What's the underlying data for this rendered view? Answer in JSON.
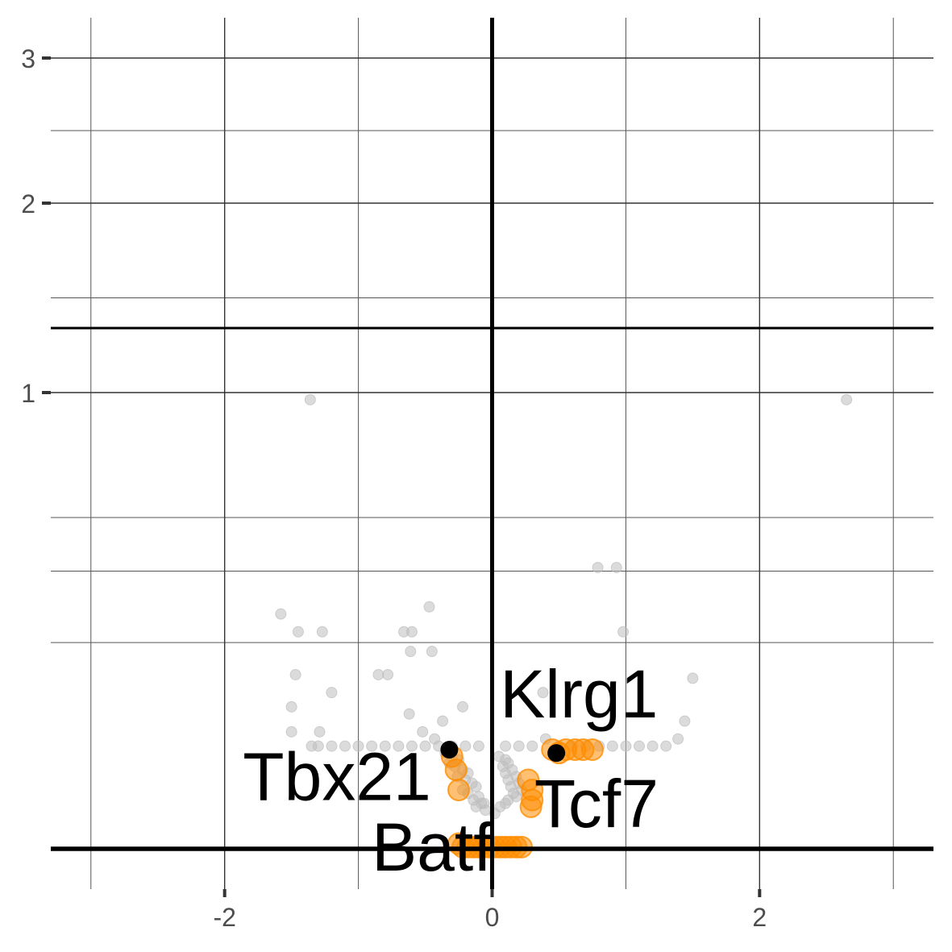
{
  "chart_data": {
    "type": "scatter",
    "title": "",
    "xlabel": "",
    "ylabel": "",
    "xlim": [
      -3.3,
      3.3
    ],
    "ylim": [
      -0.05,
      3.1
    ],
    "x_ticks": [
      {
        "value": -2,
        "label": "-2"
      },
      {
        "value": 0,
        "label": "0"
      },
      {
        "value": 2,
        "label": "2"
      }
    ],
    "y_ticks": [
      {
        "value": 1,
        "label": "1"
      },
      {
        "value": 2,
        "label": "2"
      },
      {
        "value": 3,
        "label": "3"
      }
    ],
    "grid": true,
    "reference_lines": {
      "x": 0,
      "y": [
        0,
        1.3
      ]
    },
    "colors": {
      "background_genes": "#bdbdbd",
      "highlight": "#ff8c00",
      "labelled_point": "#000000",
      "grid_major": "#333333",
      "grid_minor": "#555555"
    },
    "series": [
      {
        "role": "background",
        "points": [
          [
            -1.36,
            0.98
          ],
          [
            2.65,
            0.98
          ],
          [
            0.79,
            0.51
          ],
          [
            0.93,
            0.51
          ],
          [
            -1.58,
            0.38
          ],
          [
            -0.47,
            0.4
          ],
          [
            -1.45,
            0.33
          ],
          [
            -1.27,
            0.33
          ],
          [
            -0.66,
            0.33
          ],
          [
            -0.6,
            0.33
          ],
          [
            0.98,
            0.33
          ],
          [
            -0.61,
            0.275
          ],
          [
            -0.45,
            0.275
          ],
          [
            -1.47,
            0.21
          ],
          [
            -0.85,
            0.21
          ],
          [
            -0.78,
            0.21
          ],
          [
            1.5,
            0.2
          ],
          [
            -1.2,
            0.16
          ],
          [
            0.38,
            0.16
          ],
          [
            -1.5,
            0.12
          ],
          [
            -0.22,
            0.12
          ],
          [
            -0.62,
            0.1
          ],
          [
            -0.37,
            0.08
          ],
          [
            1.44,
            0.08
          ],
          [
            -1.5,
            0.05
          ],
          [
            -1.29,
            0.05
          ],
          [
            -0.52,
            0.05
          ],
          [
            1.39,
            0.03
          ],
          [
            -0.43,
            0.03
          ],
          [
            0.4,
            0.03
          ],
          [
            -1.35,
            0.01
          ],
          [
            -1.3,
            0.01
          ],
          [
            -1.2,
            0.01
          ],
          [
            -1.1,
            0.01
          ],
          [
            -1.0,
            0.01
          ],
          [
            -0.9,
            0.01
          ],
          [
            -0.8,
            0.01
          ],
          [
            -0.7,
            0.01
          ],
          [
            -0.6,
            0.01
          ],
          [
            -0.5,
            0.01
          ],
          [
            -0.4,
            0.01
          ],
          [
            -0.3,
            0.01
          ],
          [
            -0.2,
            0.01
          ],
          [
            -0.1,
            0.01
          ],
          [
            0.1,
            0.01
          ],
          [
            0.2,
            0.01
          ],
          [
            0.3,
            0.01
          ],
          [
            0.5,
            0.01
          ],
          [
            0.6,
            0.01
          ],
          [
            0.7,
            0.01
          ],
          [
            0.8,
            0.01
          ],
          [
            0.9,
            0.01
          ],
          [
            1.0,
            0.01
          ],
          [
            1.1,
            0.01
          ],
          [
            1.2,
            0.01
          ],
          [
            1.3,
            0.01
          ],
          [
            -0.35,
            -0.01
          ],
          [
            -0.3,
            -0.02
          ],
          [
            -0.25,
            -0.03
          ],
          [
            -0.32,
            -0.04
          ],
          [
            -0.28,
            -0.05
          ],
          [
            -0.22,
            -0.06
          ],
          [
            -0.18,
            -0.07
          ],
          [
            -0.26,
            -0.08
          ],
          [
            -0.2,
            -0.09
          ],
          [
            -0.15,
            -0.1
          ],
          [
            -0.12,
            -0.11
          ],
          [
            -0.22,
            -0.12
          ],
          [
            -0.18,
            -0.13
          ],
          [
            -0.1,
            -0.14
          ],
          [
            -0.14,
            -0.15
          ],
          [
            -0.08,
            -0.16
          ],
          [
            -0.12,
            -0.17
          ],
          [
            -0.05,
            -0.18
          ],
          [
            0.05,
            -0.02
          ],
          [
            0.1,
            -0.03
          ],
          [
            0.12,
            -0.04
          ],
          [
            0.08,
            -0.05
          ],
          [
            0.15,
            -0.06
          ],
          [
            0.1,
            -0.07
          ],
          [
            0.18,
            -0.08
          ],
          [
            0.12,
            -0.09
          ],
          [
            0.2,
            -0.1
          ],
          [
            0.14,
            -0.11
          ],
          [
            0.22,
            -0.12
          ],
          [
            0.16,
            -0.13
          ],
          [
            0.18,
            -0.14
          ],
          [
            0.12,
            -0.15
          ],
          [
            0.1,
            -0.16
          ],
          [
            0.06,
            -0.17
          ],
          [
            -0.06,
            -0.16
          ],
          [
            0.02,
            -0.19
          ]
        ]
      },
      {
        "role": "highlight",
        "points": [
          [
            -0.3,
            -0.02
          ],
          [
            -0.27,
            -0.06
          ],
          [
            -0.25,
            -0.12
          ],
          [
            0.45,
            0.0
          ],
          [
            0.5,
            -0.01
          ],
          [
            0.55,
            0.0
          ],
          [
            0.62,
            0.0
          ],
          [
            0.68,
            0.0
          ],
          [
            0.75,
            0.0
          ],
          [
            0.27,
            -0.09
          ],
          [
            0.3,
            -0.12
          ],
          [
            0.3,
            -0.15
          ],
          [
            0.29,
            -0.17
          ],
          [
            -0.25,
            -0.28
          ],
          [
            -0.22,
            -0.29
          ],
          [
            -0.18,
            -0.29
          ],
          [
            -0.14,
            -0.29
          ],
          [
            -0.1,
            -0.29
          ],
          [
            -0.06,
            -0.29
          ],
          [
            -0.02,
            -0.29
          ],
          [
            0.02,
            -0.29
          ],
          [
            0.06,
            -0.29
          ],
          [
            0.1,
            -0.29
          ],
          [
            0.14,
            -0.29
          ],
          [
            0.18,
            -0.29
          ],
          [
            0.22,
            -0.29
          ]
        ]
      },
      {
        "role": "labelled",
        "points": [
          [
            -0.32,
            0.0
          ],
          [
            0.48,
            -0.01
          ]
        ]
      }
    ],
    "annotations": [
      {
        "label": "Klrg1",
        "x": 0.65,
        "y": 0.09
      },
      {
        "label": "Tbx21",
        "x": -1.16,
        "y": -0.15
      },
      {
        "label": "Tcf7",
        "x": 0.78,
        "y": -0.23
      },
      {
        "label": "Batf",
        "x": -0.45,
        "y": -0.36
      }
    ]
  }
}
